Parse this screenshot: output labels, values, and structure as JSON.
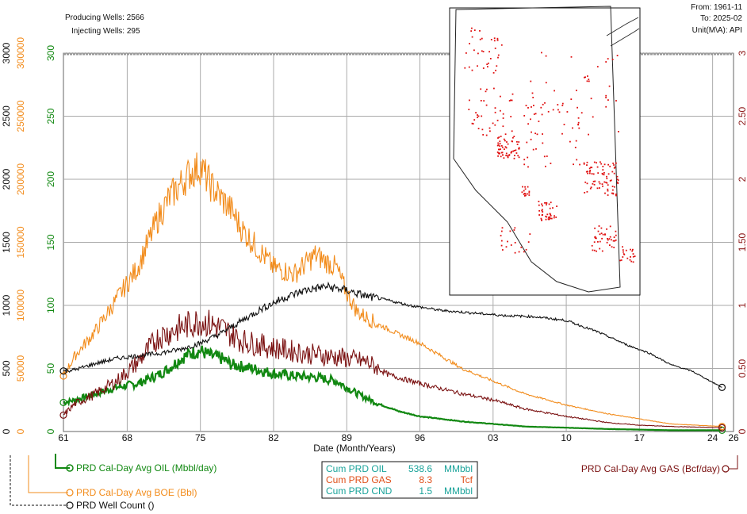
{
  "header": {
    "producing_wells": "Producing Wells: 2566",
    "injecting_wells": "Injecting Wells: 295",
    "from": "From: 1961-11",
    "to": "To: 2025-02",
    "unit": "Unit(M\\A): API"
  },
  "colors": {
    "oil": "#118811",
    "boe": "#f28c1c",
    "gas": "#7a1010",
    "wells": "#111111",
    "cnd": "#1aa39a",
    "cum_gas": "#e0501a",
    "grid": "#aaaaaa"
  },
  "chart_data": {
    "type": "line",
    "x_axis": {
      "label": "Date (Month/Years)",
      "ticks": [
        "61",
        "68",
        "75",
        "82",
        "89",
        "96",
        "03",
        "10",
        "17",
        "24",
        "26"
      ],
      "range": [
        1961.9,
        2026.0
      ]
    },
    "y_axes": {
      "wells": {
        "side": "left",
        "ticks": [
          "0",
          "500",
          "1000",
          "1500",
          "2000",
          "2500",
          "3000"
        ],
        "range": [
          0,
          3000
        ]
      },
      "boe": {
        "side": "left",
        "ticks": [
          "0",
          "50000",
          "100000",
          "150000",
          "200000",
          "250000",
          "300000"
        ],
        "range": [
          0,
          300000
        ]
      },
      "oil": {
        "side": "left",
        "ticks": [
          "0",
          "50",
          "100",
          "150",
          "200",
          "250",
          "300"
        ],
        "range": [
          0,
          300
        ]
      },
      "gas": {
        "side": "right",
        "ticks": [
          "0",
          "0.50",
          "1",
          "1.50",
          "2",
          "2.50",
          "3"
        ],
        "range": [
          0,
          3
        ]
      }
    },
    "series": [
      {
        "name": "PRD Cal-Day Avg OIL (Mbbl/day)",
        "axis": "oil",
        "x": [
          1961.9,
          1963,
          1965,
          1967,
          1969,
          1971,
          1972,
          1973,
          1974,
          1975,
          1976,
          1977,
          1978,
          1980,
          1982,
          1984,
          1986,
          1988,
          1989,
          1990,
          1992,
          1994,
          1996,
          1998,
          2000,
          2003,
          2006,
          2010,
          2014,
          2017,
          2020,
          2024.9
        ],
        "y": [
          23,
          25,
          30,
          35,
          38,
          45,
          50,
          57,
          62,
          64,
          60,
          58,
          53,
          50,
          46,
          44,
          43,
          40,
          35,
          30,
          22,
          16,
          12,
          10,
          8,
          6,
          4,
          3,
          2,
          1.5,
          1,
          1
        ]
      },
      {
        "name": "PRD Cal-Day Avg BOE (Bbl)",
        "axis": "boe",
        "x": [
          1961.9,
          1963,
          1965,
          1967,
          1969,
          1970,
          1971,
          1972,
          1973,
          1974,
          1975,
          1976,
          1977,
          1978,
          1979,
          1980,
          1982,
          1984,
          1986,
          1988,
          1989,
          1990,
          1992,
          1994,
          1996,
          1998,
          2000,
          2003,
          2006,
          2010,
          2014,
          2017,
          2020,
          2024.9
        ],
        "y": [
          44000,
          60000,
          80000,
          105000,
          130000,
          150000,
          170000,
          185000,
          195000,
          205000,
          210000,
          195000,
          185000,
          175000,
          160000,
          150000,
          130000,
          125000,
          140000,
          130000,
          110000,
          95000,
          85000,
          77000,
          70000,
          60000,
          50000,
          40000,
          30000,
          21000,
          14000,
          10000,
          6000,
          4000
        ]
      },
      {
        "name": "PRD Cal-Day Avg GAS (Bcf/day)",
        "axis": "gas",
        "x": [
          1961.9,
          1963,
          1965,
          1967,
          1969,
          1971,
          1973,
          1975,
          1977,
          1979,
          1981,
          1983,
          1985,
          1987,
          1989,
          1991,
          1993,
          1996,
          2000,
          2003,
          2006,
          2010,
          2014,
          2017,
          2020,
          2024.9
        ],
        "y": [
          0.13,
          0.22,
          0.3,
          0.4,
          0.55,
          0.75,
          0.82,
          0.88,
          0.82,
          0.72,
          0.68,
          0.65,
          0.62,
          0.6,
          0.58,
          0.55,
          0.45,
          0.38,
          0.3,
          0.25,
          0.18,
          0.12,
          0.07,
          0.05,
          0.04,
          0.03
        ]
      },
      {
        "name": "PRD Well Count ()",
        "axis": "wells",
        "x": [
          1961.9,
          1963,
          1965,
          1967,
          1969,
          1971,
          1973,
          1975,
          1977,
          1979,
          1981,
          1983,
          1985,
          1987,
          1989,
          1991,
          1993,
          1995,
          1998,
          2001,
          2004,
          2007,
          2010,
          2013,
          2016,
          2018,
          2020,
          2022,
          2024.9
        ],
        "y": [
          480,
          490,
          540,
          580,
          600,
          620,
          650,
          700,
          780,
          880,
          980,
          1060,
          1120,
          1150,
          1120,
          1070,
          1040,
          1000,
          960,
          940,
          920,
          910,
          880,
          790,
          680,
          620,
          530,
          480,
          350
        ]
      }
    ],
    "grid": true
  },
  "legend": {
    "oil": "PRD Cal-Day Avg OIL (Mbbl/day)",
    "boe": "PRD Cal-Day Avg BOE (Bbl)",
    "wells": "PRD Well Count ()",
    "gas": "PRD Cal-Day Avg GAS (Bcf/day)"
  },
  "cumulative": [
    {
      "label": "Cum PRD OIL",
      "value": "538.6",
      "unit": "MMbbl"
    },
    {
      "label": "Cum PRD GAS",
      "value": "8.3",
      "unit": "Tcf"
    },
    {
      "label": "Cum PRD CND",
      "value": "1.5",
      "unit": "MMbbl"
    }
  ]
}
